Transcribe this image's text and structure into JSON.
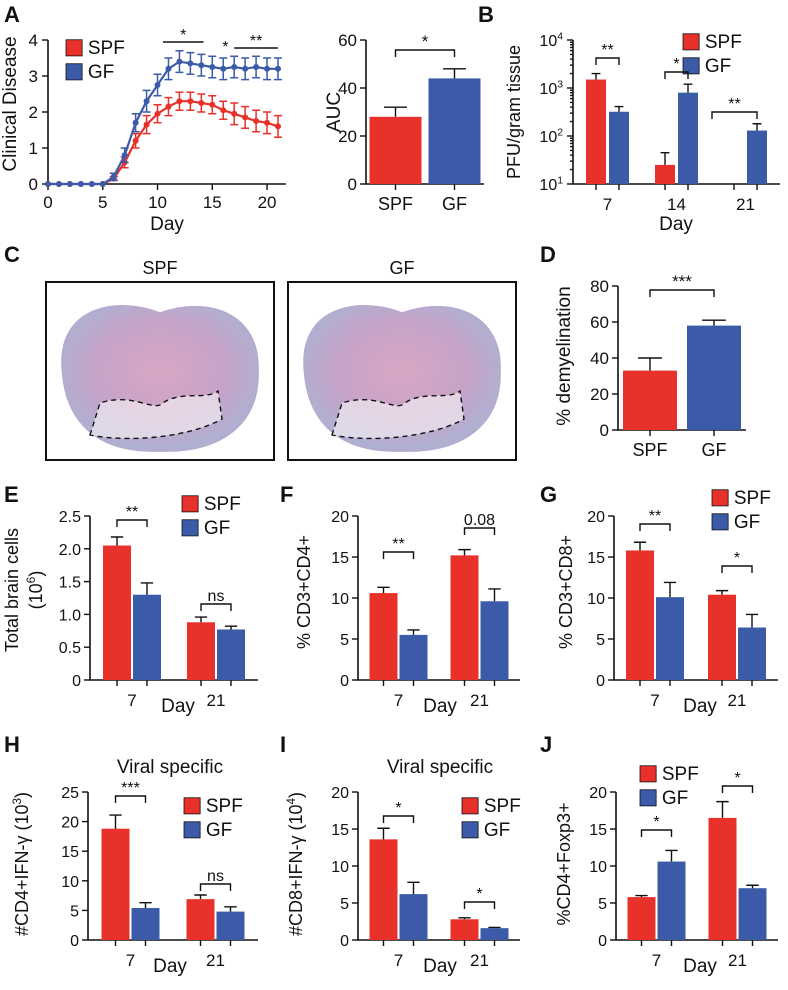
{
  "colors": {
    "spf": "#e8312a",
    "gf": "#3b5ba8"
  },
  "chart_data": [
    {
      "id": "A1",
      "type": "line",
      "panel_letter": "A",
      "ylabel": "Clinical Disease",
      "xlabel": "Day",
      "ylim": [
        0,
        4
      ],
      "xlim": [
        0,
        21
      ],
      "yticks": [
        "0",
        "1",
        "2",
        "3",
        "4"
      ],
      "xticks": [
        "0",
        "5",
        "10",
        "15",
        "20"
      ],
      "legend": [
        "SPF",
        "GF"
      ],
      "series": [
        {
          "name": "SPF",
          "x": [
            0,
            1,
            2,
            3,
            4,
            5,
            6,
            7,
            8,
            9,
            10,
            11,
            12,
            13,
            14,
            15,
            16,
            17,
            18,
            19,
            20,
            21
          ],
          "y": [
            0,
            0,
            0,
            0,
            0,
            0,
            0.15,
            0.6,
            1.2,
            1.65,
            1.95,
            2.15,
            2.3,
            2.3,
            2.25,
            2.2,
            2.05,
            1.95,
            1.85,
            1.75,
            1.7,
            1.6
          ],
          "err": [
            0,
            0,
            0,
            0,
            0,
            0,
            0.05,
            0.15,
            0.2,
            0.25,
            0.25,
            0.25,
            0.25,
            0.25,
            0.25,
            0.25,
            0.25,
            0.3,
            0.3,
            0.3,
            0.3,
            0.3
          ]
        },
        {
          "name": "GF",
          "x": [
            0,
            1,
            2,
            3,
            4,
            5,
            6,
            7,
            8,
            9,
            10,
            11,
            12,
            13,
            14,
            15,
            16,
            17,
            18,
            19,
            20,
            21
          ],
          "y": [
            0,
            0,
            0,
            0,
            0,
            0,
            0.2,
            0.8,
            1.7,
            2.3,
            2.75,
            3.2,
            3.4,
            3.35,
            3.3,
            3.25,
            3.2,
            3.25,
            3.2,
            3.25,
            3.2,
            3.2
          ],
          "err": [
            0,
            0,
            0,
            0,
            0,
            0,
            0.1,
            0.2,
            0.25,
            0.3,
            0.3,
            0.3,
            0.3,
            0.3,
            0.3,
            0.3,
            0.3,
            0.3,
            0.3,
            0.3,
            0.3,
            0.3
          ]
        }
      ],
      "annotations": [
        "*",
        "*",
        "**"
      ]
    },
    {
      "id": "A2",
      "type": "bar",
      "ylabel": "AUC",
      "ylim": [
        0,
        60
      ],
      "yticks": [
        "0",
        "20",
        "40",
        "60"
      ],
      "categories": [
        "SPF",
        "GF"
      ],
      "values": [
        28,
        44
      ],
      "errors": [
        4,
        4
      ],
      "annotations": [
        "*"
      ]
    },
    {
      "id": "B",
      "type": "bar",
      "panel_letter": "B",
      "ylabel": "PFU/gram tissue",
      "xlabel": "Day",
      "yscale": "log",
      "ylim": [
        10,
        10000
      ],
      "yticks": [
        "10^1",
        "10^2",
        "10^3",
        "10^4"
      ],
      "categories": [
        "7",
        "14",
        "21"
      ],
      "legend": [
        "SPF",
        "GF"
      ],
      "series": [
        {
          "name": "SPF",
          "values": [
            1500,
            25,
            0
          ],
          "errors": [
            500,
            20,
            0
          ]
        },
        {
          "name": "GF",
          "values": [
            320,
            800,
            130
          ],
          "errors": [
            90,
            400,
            50
          ]
        }
      ],
      "annotations": [
        "**",
        "*",
        "**"
      ]
    },
    {
      "id": "D",
      "type": "bar",
      "panel_letter": "D",
      "ylabel": "% demyelination",
      "ylim": [
        0,
        80
      ],
      "yticks": [
        "0",
        "20",
        "40",
        "60",
        "80"
      ],
      "categories": [
        "SPF",
        "GF"
      ],
      "values": [
        33,
        58
      ],
      "errors": [
        7,
        3
      ],
      "annotations": [
        "***"
      ]
    },
    {
      "id": "E",
      "type": "bar",
      "panel_letter": "E",
      "ylabel": "Total brain cells (10^6)",
      "xlabel": "Day",
      "ylim": [
        0,
        2.5
      ],
      "yticks": [
        "0",
        "0.5",
        "1.0",
        "1.5",
        "2.0",
        "2.5"
      ],
      "categories": [
        "7",
        "21"
      ],
      "legend": [
        "SPF",
        "GF"
      ],
      "series": [
        {
          "name": "SPF",
          "values": [
            2.05,
            0.88
          ],
          "errors": [
            0.13,
            0.08
          ]
        },
        {
          "name": "GF",
          "values": [
            1.3,
            0.77
          ],
          "errors": [
            0.18,
            0.05
          ]
        }
      ],
      "annotations": [
        "**",
        "ns"
      ]
    },
    {
      "id": "F",
      "type": "bar",
      "panel_letter": "F",
      "ylabel": "% CD3+CD4+",
      "xlabel": "Day",
      "ylim": [
        0,
        20
      ],
      "yticks": [
        "0",
        "5",
        "10",
        "15",
        "20"
      ],
      "categories": [
        "7",
        "21"
      ],
      "series": [
        {
          "name": "SPF",
          "values": [
            10.6,
            15.2
          ],
          "errors": [
            0.7,
            0.7
          ]
        },
        {
          "name": "GF",
          "values": [
            5.5,
            9.6
          ],
          "errors": [
            0.6,
            1.5
          ]
        }
      ],
      "annotations": [
        "**",
        "0.08"
      ]
    },
    {
      "id": "G",
      "type": "bar",
      "panel_letter": "G",
      "ylabel": "% CD3+CD8+",
      "xlabel": "Day",
      "ylim": [
        0,
        20
      ],
      "yticks": [
        "0",
        "5",
        "10",
        "15",
        "20"
      ],
      "categories": [
        "7",
        "21"
      ],
      "legend": [
        "SPF",
        "GF"
      ],
      "series": [
        {
          "name": "SPF",
          "values": [
            15.8,
            10.4
          ],
          "errors": [
            1.0,
            0.5
          ]
        },
        {
          "name": "GF",
          "values": [
            10.1,
            6.4
          ],
          "errors": [
            1.8,
            1.6
          ]
        }
      ],
      "annotations": [
        "**",
        "*"
      ]
    },
    {
      "id": "H",
      "type": "bar",
      "panel_letter": "H",
      "title": "Viral specific",
      "ylabel": "#CD4+IFN-γ (10^3)",
      "xlabel": "Day",
      "ylim": [
        0,
        25
      ],
      "yticks": [
        "0",
        "5",
        "10",
        "15",
        "20",
        "25"
      ],
      "categories": [
        "7",
        "21"
      ],
      "legend": [
        "SPF",
        "GF"
      ],
      "series": [
        {
          "name": "SPF",
          "values": [
            18.8,
            6.9
          ],
          "errors": [
            2.3,
            0.7
          ]
        },
        {
          "name": "GF",
          "values": [
            5.4,
            4.8
          ],
          "errors": [
            0.9,
            0.8
          ]
        }
      ],
      "annotations": [
        "***",
        "ns"
      ]
    },
    {
      "id": "I",
      "type": "bar",
      "panel_letter": "I",
      "title": "Viral specific",
      "ylabel": "#CD8+IFN-γ (10^4)",
      "xlabel": "Day",
      "ylim": [
        0,
        20
      ],
      "yticks": [
        "0",
        "5",
        "10",
        "15",
        "20"
      ],
      "categories": [
        "7",
        "21"
      ],
      "legend": [
        "SPF",
        "GF"
      ],
      "series": [
        {
          "name": "SPF",
          "values": [
            13.6,
            2.8
          ],
          "errors": [
            1.5,
            0.2
          ]
        },
        {
          "name": "GF",
          "values": [
            6.2,
            1.6
          ],
          "errors": [
            1.6,
            0.1
          ]
        }
      ],
      "annotations": [
        "*",
        "*"
      ]
    },
    {
      "id": "J",
      "type": "bar",
      "panel_letter": "J",
      "ylabel": "%CD4+Foxp3+",
      "xlabel": "Day",
      "ylim": [
        0,
        20
      ],
      "yticks": [
        "0",
        "5",
        "10",
        "15",
        "20"
      ],
      "categories": [
        "7",
        "21"
      ],
      "legend": [
        "SPF",
        "GF"
      ],
      "series": [
        {
          "name": "SPF",
          "values": [
            5.8,
            16.5
          ],
          "errors": [
            0.2,
            2.2
          ]
        },
        {
          "name": "GF",
          "values": [
            10.6,
            7.0
          ],
          "errors": [
            1.5,
            0.4
          ]
        }
      ],
      "annotations": [
        "*",
        "*"
      ]
    }
  ],
  "histology": {
    "panel_letter": "C",
    "images": [
      {
        "label": "SPF"
      },
      {
        "label": "GF"
      }
    ]
  }
}
